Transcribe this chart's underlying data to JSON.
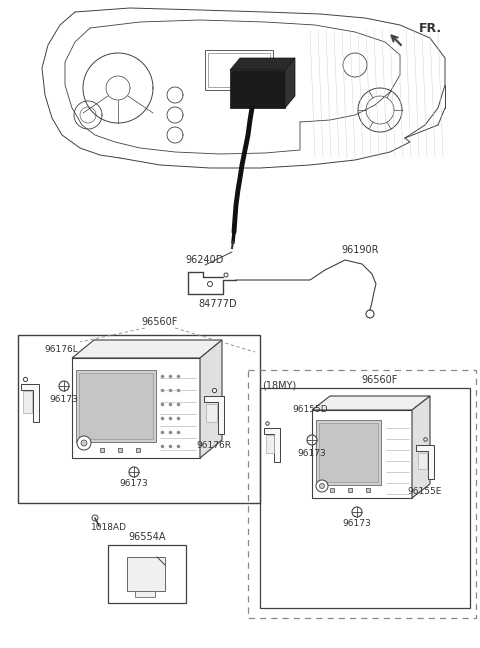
{
  "bg_color": "#ffffff",
  "lc": "#404040",
  "dc": "#888888",
  "tc": "#333333",
  "labels": {
    "FR": "FR.",
    "96240D": "96240D",
    "96190R": "96190R",
    "84777D": "84777D",
    "96560F_left": "96560F",
    "96176L": "96176L",
    "96173_a": "96173",
    "96173_b": "96173",
    "96176R": "96176R",
    "1018AD": "1018AD",
    "96554A": "96554A",
    "18MY": "(18MY)",
    "96560F_right": "96560F",
    "96155D": "96155D",
    "96173_c": "96173",
    "96173_d": "96173",
    "96155E": "96155E"
  },
  "figsize": [
    4.8,
    6.48
  ],
  "dpi": 100
}
